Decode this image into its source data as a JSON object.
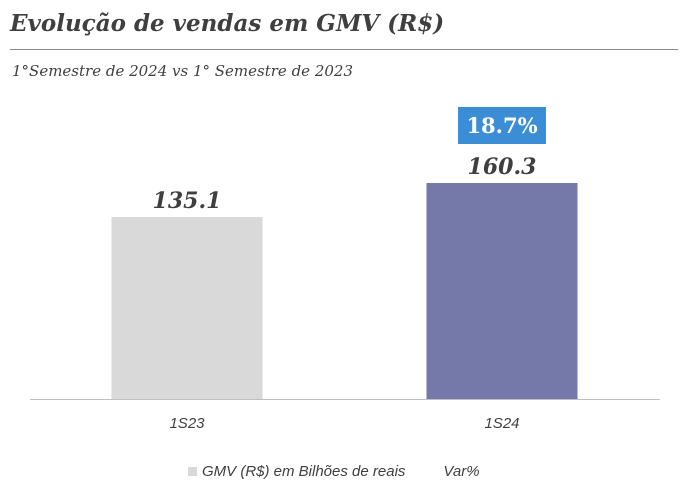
{
  "title": "Evolução de vendas em GMV (R$)",
  "subtitle": "1°Semestre de 2024 vs 1° Semestre de 2023",
  "legend": {
    "series_label": "GMV (R$) em Bilhões de reais",
    "var_label": "Var%"
  },
  "colors": {
    "bar_1S23": "#d9d9d9",
    "bar_1S24": "#7579a9",
    "var_badge": "#3b8ed6",
    "axis": "#bfbfbf"
  },
  "chart_data": {
    "type": "bar",
    "categories": [
      "1S23",
      "1S24"
    ],
    "series": [
      {
        "name": "GMV (R$) em Bilhões de reais",
        "values": [
          135.1,
          160.3
        ],
        "labels": [
          "135.1",
          "160.3"
        ]
      }
    ],
    "variation": {
      "name": "Var%",
      "category": "1S24",
      "label": "18.7%"
    },
    "ylim": [
      0,
      200
    ],
    "grid": false,
    "legend_position": "bottom"
  }
}
